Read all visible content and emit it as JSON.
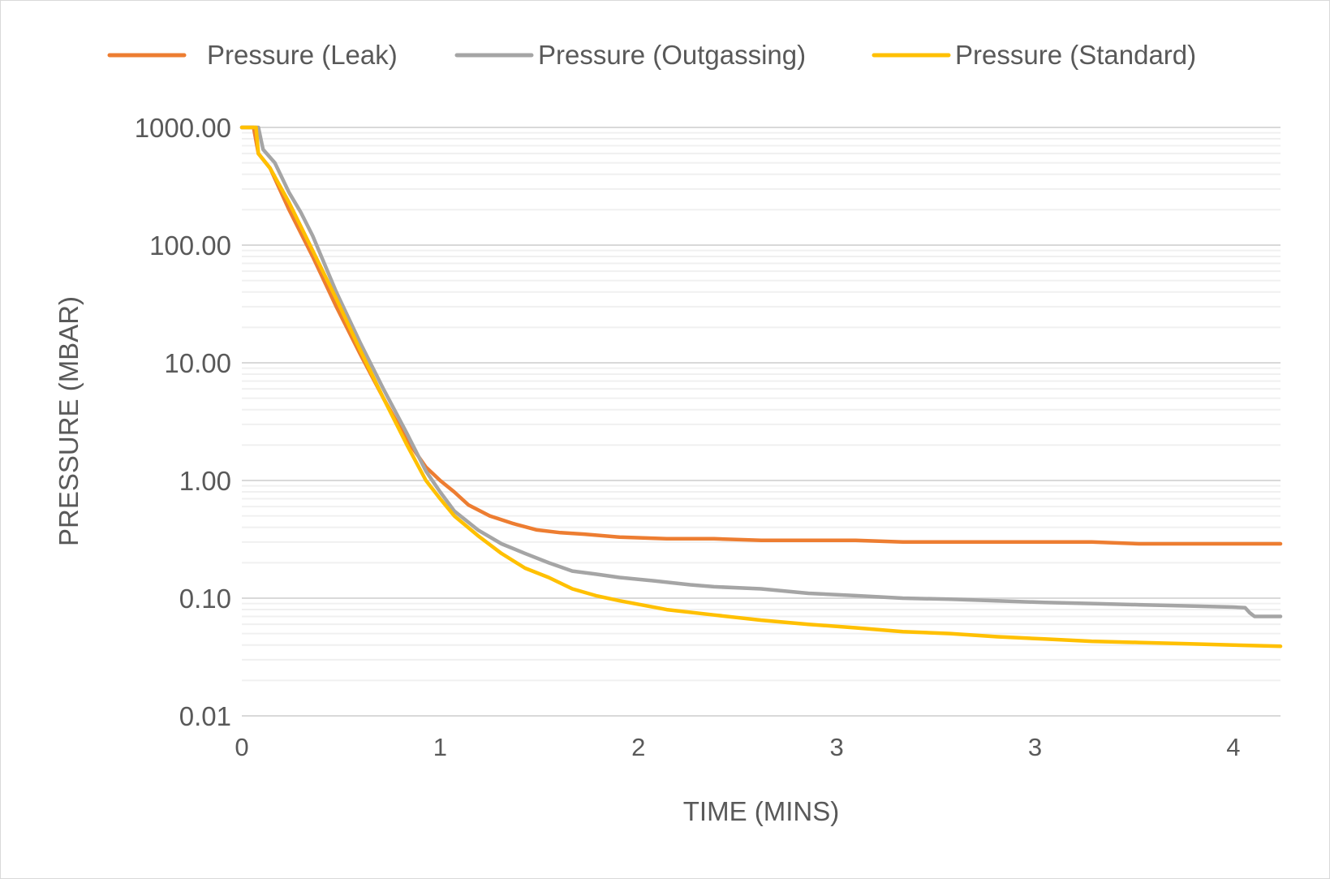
{
  "chart_data": {
    "type": "line",
    "title": "",
    "xlabel": "TIME (MINS)",
    "ylabel": "PRESSURE (MBAR)",
    "y_scale": "log",
    "ylim": [
      0.01,
      1000
    ],
    "xlim": [
      0,
      4.4
    ],
    "y_ticks": [
      {
        "value": 1000,
        "label": "1000.00"
      },
      {
        "value": 100,
        "label": "100.00"
      },
      {
        "value": 10,
        "label": "10.00"
      },
      {
        "value": 1,
        "label": "1.00"
      },
      {
        "value": 0.1,
        "label": "0.10"
      },
      {
        "value": 0.01,
        "label": "0.01"
      }
    ],
    "x_ticks": [
      {
        "value": 0,
        "label": "0"
      },
      {
        "value": 0.84,
        "label": "1"
      },
      {
        "value": 1.68,
        "label": "2"
      },
      {
        "value": 2.52,
        "label": "3"
      },
      {
        "value": 3.36,
        "label": "3"
      },
      {
        "value": 4.2,
        "label": "4"
      }
    ],
    "grid": true,
    "legend_position": "top",
    "series": [
      {
        "name": "Pressure (Leak)",
        "color": "#ED7D31",
        "points": [
          [
            0,
            1000
          ],
          [
            0.05,
            1000
          ],
          [
            0.07,
            600
          ],
          [
            0.12,
            450
          ],
          [
            0.2,
            200
          ],
          [
            0.3,
            80
          ],
          [
            0.4,
            30
          ],
          [
            0.5,
            12
          ],
          [
            0.6,
            5
          ],
          [
            0.7,
            2.2
          ],
          [
            0.78,
            1.3
          ],
          [
            0.84,
            1.0
          ],
          [
            0.9,
            0.8
          ],
          [
            0.96,
            0.62
          ],
          [
            1.05,
            0.5
          ],
          [
            1.15,
            0.43
          ],
          [
            1.25,
            0.38
          ],
          [
            1.35,
            0.36
          ],
          [
            1.45,
            0.35
          ],
          [
            1.6,
            0.33
          ],
          [
            1.8,
            0.32
          ],
          [
            2.0,
            0.32
          ],
          [
            2.2,
            0.31
          ],
          [
            2.4,
            0.31
          ],
          [
            2.6,
            0.31
          ],
          [
            2.8,
            0.3
          ],
          [
            3.0,
            0.3
          ],
          [
            3.2,
            0.3
          ],
          [
            3.6,
            0.3
          ],
          [
            3.8,
            0.29
          ],
          [
            4.0,
            0.29
          ],
          [
            4.4,
            0.29
          ]
        ]
      },
      {
        "name": "Pressure (Outgassing)",
        "color": "#A5A5A5",
        "points": [
          [
            0,
            1000
          ],
          [
            0.07,
            1000
          ],
          [
            0.09,
            650
          ],
          [
            0.14,
            500
          ],
          [
            0.2,
            280
          ],
          [
            0.25,
            190
          ],
          [
            0.3,
            120
          ],
          [
            0.4,
            40
          ],
          [
            0.5,
            15
          ],
          [
            0.6,
            6
          ],
          [
            0.7,
            2.5
          ],
          [
            0.78,
            1.2
          ],
          [
            0.84,
            0.8
          ],
          [
            0.9,
            0.55
          ],
          [
            1.0,
            0.38
          ],
          [
            1.1,
            0.29
          ],
          [
            1.2,
            0.24
          ],
          [
            1.3,
            0.2
          ],
          [
            1.4,
            0.17
          ],
          [
            1.5,
            0.16
          ],
          [
            1.6,
            0.15
          ],
          [
            1.75,
            0.14
          ],
          [
            1.9,
            0.13
          ],
          [
            2.0,
            0.125
          ],
          [
            2.2,
            0.12
          ],
          [
            2.4,
            0.11
          ],
          [
            2.6,
            0.105
          ],
          [
            2.8,
            0.1
          ],
          [
            3.0,
            0.098
          ],
          [
            3.2,
            0.095
          ],
          [
            3.4,
            0.092
          ],
          [
            3.6,
            0.09
          ],
          [
            3.8,
            0.088
          ],
          [
            4.0,
            0.086
          ],
          [
            4.2,
            0.084
          ],
          [
            4.25,
            0.083
          ],
          [
            4.27,
            0.075
          ],
          [
            4.29,
            0.07
          ],
          [
            4.4,
            0.07
          ]
        ]
      },
      {
        "name": "Pressure (Standard)",
        "color": "#FFC000",
        "points": [
          [
            0,
            1000
          ],
          [
            0.06,
            1000
          ],
          [
            0.07,
            600
          ],
          [
            0.12,
            450
          ],
          [
            0.2,
            230
          ],
          [
            0.3,
            90
          ],
          [
            0.4,
            35
          ],
          [
            0.5,
            13
          ],
          [
            0.6,
            5
          ],
          [
            0.7,
            2
          ],
          [
            0.78,
            1.0
          ],
          [
            0.84,
            0.7
          ],
          [
            0.9,
            0.5
          ],
          [
            1.0,
            0.34
          ],
          [
            1.1,
            0.24
          ],
          [
            1.2,
            0.18
          ],
          [
            1.3,
            0.15
          ],
          [
            1.4,
            0.12
          ],
          [
            1.5,
            0.105
          ],
          [
            1.6,
            0.095
          ],
          [
            1.8,
            0.08
          ],
          [
            2.0,
            0.072
          ],
          [
            2.2,
            0.065
          ],
          [
            2.4,
            0.06
          ],
          [
            2.6,
            0.056
          ],
          [
            2.8,
            0.052
          ],
          [
            3.0,
            0.05
          ],
          [
            3.2,
            0.047
          ],
          [
            3.4,
            0.045
          ],
          [
            3.6,
            0.043
          ],
          [
            3.8,
            0.042
          ],
          [
            4.0,
            0.041
          ],
          [
            4.2,
            0.04
          ],
          [
            4.4,
            0.039
          ]
        ]
      }
    ]
  }
}
